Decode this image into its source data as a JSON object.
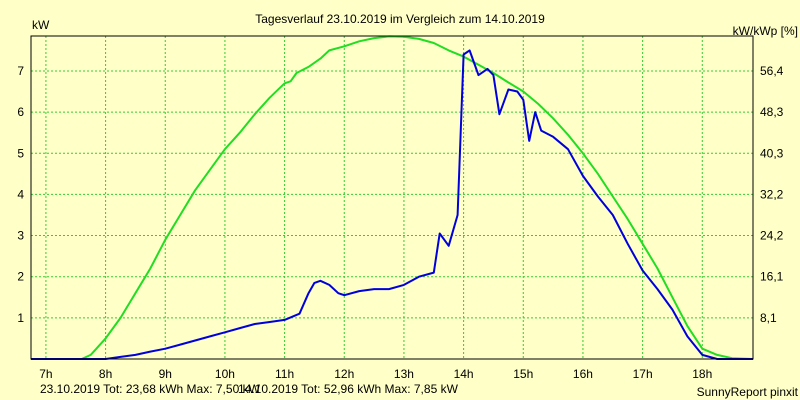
{
  "chart_data": {
    "type": "line",
    "title": "Tagesverlauf 23.10.2019 im Vergleich zum 14.10.2019",
    "ylabel": "kW",
    "y2label": "kW/kWp [%]",
    "xlim": [
      6.75,
      18.85
    ],
    "ylim": [
      0,
      7.85
    ],
    "x_ticks": [
      {
        "value": 7,
        "label": "7h"
      },
      {
        "value": 8,
        "label": "8h"
      },
      {
        "value": 9,
        "label": "9h"
      },
      {
        "value": 10,
        "label": "10h"
      },
      {
        "value": 11,
        "label": "11h"
      },
      {
        "value": 12,
        "label": "12h"
      },
      {
        "value": 13,
        "label": "13h"
      },
      {
        "value": 14,
        "label": "14h"
      },
      {
        "value": 15,
        "label": "15h"
      },
      {
        "value": 16,
        "label": "16h"
      },
      {
        "value": 17,
        "label": "17h"
      },
      {
        "value": 18,
        "label": "18h"
      }
    ],
    "y_ticks": [
      {
        "value": 1,
        "label": "1"
      },
      {
        "value": 2,
        "label": "2"
      },
      {
        "value": 3,
        "label": "3"
      },
      {
        "value": 4,
        "label": "4"
      },
      {
        "value": 5,
        "label": "5"
      },
      {
        "value": 6,
        "label": "6"
      },
      {
        "value": 7,
        "label": "7"
      }
    ],
    "y2_ticks": [
      {
        "value": 1,
        "label": "8,1"
      },
      {
        "value": 2,
        "label": "16,1"
      },
      {
        "value": 3,
        "label": "24,2"
      },
      {
        "value": 4,
        "label": "32,2"
      },
      {
        "value": 5,
        "label": "40,3"
      },
      {
        "value": 6,
        "label": "48,3"
      },
      {
        "value": 7,
        "label": "56,4"
      }
    ],
    "grid": true,
    "series": [
      {
        "name": "14.10.2019",
        "color": "#22dd22",
        "x": [
          6.75,
          7.6,
          7.75,
          8.0,
          8.25,
          8.5,
          8.75,
          9.0,
          9.25,
          9.5,
          9.75,
          10.0,
          10.25,
          10.5,
          10.75,
          11.0,
          11.1,
          11.2,
          11.4,
          11.6,
          11.75,
          12.0,
          12.25,
          12.5,
          12.75,
          13.0,
          13.25,
          13.5,
          13.75,
          14.0,
          14.25,
          14.5,
          14.75,
          15.0,
          15.25,
          15.5,
          15.75,
          16.0,
          16.25,
          16.5,
          16.75,
          17.0,
          17.25,
          17.5,
          17.75,
          18.0,
          18.25,
          18.5,
          18.85
        ],
        "values": [
          0,
          0,
          0.1,
          0.5,
          1.0,
          1.6,
          2.2,
          2.9,
          3.5,
          4.1,
          4.6,
          5.1,
          5.5,
          5.95,
          6.35,
          6.7,
          6.75,
          6.95,
          7.1,
          7.3,
          7.5,
          7.6,
          7.72,
          7.8,
          7.84,
          7.83,
          7.78,
          7.68,
          7.5,
          7.35,
          7.15,
          6.95,
          6.72,
          6.5,
          6.2,
          5.85,
          5.45,
          5.0,
          4.5,
          3.95,
          3.4,
          2.8,
          2.2,
          1.5,
          0.8,
          0.25,
          0.1,
          0.02,
          0
        ]
      },
      {
        "name": "23.10.2019",
        "color": "#0000dd",
        "x": [
          6.75,
          8.0,
          8.25,
          8.5,
          8.75,
          9.0,
          9.25,
          9.5,
          9.75,
          10.0,
          10.25,
          10.5,
          10.75,
          11.0,
          11.25,
          11.4,
          11.5,
          11.6,
          11.75,
          11.9,
          12.0,
          12.25,
          12.5,
          12.75,
          13.0,
          13.25,
          13.5,
          13.6,
          13.75,
          13.9,
          14.0,
          14.1,
          14.25,
          14.4,
          14.5,
          14.6,
          14.75,
          14.9,
          15.0,
          15.1,
          15.2,
          15.3,
          15.5,
          15.75,
          16.0,
          16.25,
          16.5,
          16.75,
          17.0,
          17.25,
          17.5,
          17.75,
          18.0,
          18.25,
          18.85
        ],
        "values": [
          0,
          0,
          0.05,
          0.1,
          0.18,
          0.25,
          0.35,
          0.45,
          0.55,
          0.65,
          0.75,
          0.85,
          0.9,
          0.95,
          1.1,
          1.6,
          1.85,
          1.9,
          1.8,
          1.6,
          1.55,
          1.65,
          1.7,
          1.7,
          1.8,
          2.0,
          2.1,
          3.05,
          2.75,
          3.5,
          7.4,
          7.5,
          6.9,
          7.05,
          6.9,
          5.95,
          6.55,
          6.5,
          6.3,
          5.3,
          6.0,
          5.55,
          5.4,
          5.1,
          4.45,
          3.95,
          3.5,
          2.8,
          2.15,
          1.7,
          1.2,
          0.55,
          0.1,
          0,
          0
        ]
      }
    ]
  },
  "footer": {
    "left_text": "23.10.2019 Tot: 23,68 kWh Max: 7,50 kW",
    "left_color": "#0000dd",
    "middle_text": "14.10.2019 Tot: 52,96 kWh Max: 7,85 kW",
    "middle_color": "#22aa00",
    "right_text": "SunnyReport pinxit"
  }
}
